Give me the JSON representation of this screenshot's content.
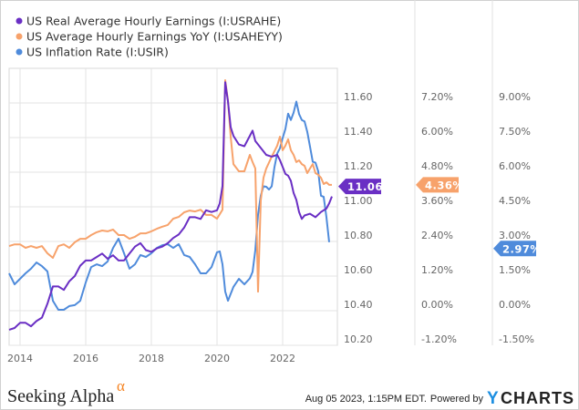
{
  "chart_data": {
    "type": "line",
    "title": "",
    "legend_position": "top-left",
    "grid": true,
    "x_ticks": [
      "2014",
      "2016",
      "2018",
      "2020",
      "2022"
    ],
    "xlim": [
      "2013-09",
      "2023-08"
    ],
    "axes": [
      {
        "id": "usrahe",
        "ticks": [
          "11.60",
          "11.40",
          "11.20",
          "11.00",
          "10.80",
          "10.60",
          "10.40",
          "10.20"
        ],
        "ylim": [
          10.2,
          11.8
        ]
      },
      {
        "id": "usaheyy",
        "ticks": [
          "7.20%",
          "6.00%",
          "4.80%",
          "3.60%",
          "2.40%",
          "1.20%",
          "0.00%",
          "-1.20%"
        ],
        "ylim": [
          -1.2,
          8.4
        ]
      },
      {
        "id": "usir",
        "ticks": [
          "9.00%",
          "7.50%",
          "6.00%",
          "4.50%",
          "3.00%",
          "1.50%",
          "0.00%",
          "-1.50%"
        ],
        "ylim": [
          -1.5,
          10.5
        ]
      }
    ],
    "series": [
      {
        "name": "US Real Average Hourly Earnings (I:USRAHE)",
        "axis": "usrahe",
        "color": "#6a2fc4",
        "last_label": "11.06",
        "points": [
          [
            "2013-09",
            10.29
          ],
          [
            "2013-11",
            10.3
          ],
          [
            "2014-01",
            10.33
          ],
          [
            "2014-03",
            10.33
          ],
          [
            "2014-05",
            10.31
          ],
          [
            "2014-07",
            10.34
          ],
          [
            "2014-09",
            10.36
          ],
          [
            "2014-11",
            10.44
          ],
          [
            "2015-01",
            10.54
          ],
          [
            "2015-03",
            10.54
          ],
          [
            "2015-05",
            10.52
          ],
          [
            "2015-07",
            10.57
          ],
          [
            "2015-09",
            10.6
          ],
          [
            "2015-11",
            10.66
          ],
          [
            "2016-01",
            10.69
          ],
          [
            "2016-03",
            10.69
          ],
          [
            "2016-05",
            10.71
          ],
          [
            "2016-07",
            10.73
          ],
          [
            "2016-09",
            10.7
          ],
          [
            "2016-11",
            10.72
          ],
          [
            "2017-01",
            10.69
          ],
          [
            "2017-03",
            10.69
          ],
          [
            "2017-05",
            10.73
          ],
          [
            "2017-07",
            10.77
          ],
          [
            "2017-09",
            10.79
          ],
          [
            "2017-11",
            10.75
          ],
          [
            "2018-01",
            10.74
          ],
          [
            "2018-03",
            10.76
          ],
          [
            "2018-05",
            10.77
          ],
          [
            "2018-07",
            10.79
          ],
          [
            "2018-09",
            10.82
          ],
          [
            "2018-11",
            10.84
          ],
          [
            "2019-01",
            10.88
          ],
          [
            "2019-03",
            10.94
          ],
          [
            "2019-05",
            10.94
          ],
          [
            "2019-07",
            10.93
          ],
          [
            "2019-09",
            10.98
          ],
          [
            "2019-11",
            10.97
          ],
          [
            "2020-01",
            10.98
          ],
          [
            "2020-02",
            11.02
          ],
          [
            "2020-03",
            11.12
          ],
          [
            "2020-04",
            11.72
          ],
          [
            "2020-05",
            11.61
          ],
          [
            "2020-06",
            11.46
          ],
          [
            "2020-07",
            11.41
          ],
          [
            "2020-09",
            11.36
          ],
          [
            "2020-11",
            11.35
          ],
          [
            "2021-01",
            11.41
          ],
          [
            "2021-02",
            11.44
          ],
          [
            "2021-03",
            11.38
          ],
          [
            "2021-05",
            11.34
          ],
          [
            "2021-07",
            11.3
          ],
          [
            "2021-09",
            11.29
          ],
          [
            "2021-11",
            11.3
          ],
          [
            "2021-12",
            11.27
          ],
          [
            "2022-01",
            11.23
          ],
          [
            "2022-02",
            11.19
          ],
          [
            "2022-03",
            11.18
          ],
          [
            "2022-04",
            11.15
          ],
          [
            "2022-05",
            11.08
          ],
          [
            "2022-06",
            11.04
          ],
          [
            "2022-07",
            10.97
          ],
          [
            "2022-08",
            10.93
          ],
          [
            "2022-09",
            10.95
          ],
          [
            "2022-11",
            10.96
          ],
          [
            "2023-01",
            10.94
          ],
          [
            "2023-03",
            10.97
          ],
          [
            "2023-05",
            10.99
          ],
          [
            "2023-06",
            11.02
          ],
          [
            "2023-07",
            11.06
          ]
        ]
      },
      {
        "name": "US Average Hourly Earnings YoY (I:USAHEYY)",
        "axis": "usaheyy",
        "color": "#f7a26b",
        "last_label": "4.36%",
        "points": [
          [
            "2013-09",
            2.24
          ],
          [
            "2013-11",
            2.3
          ],
          [
            "2014-01",
            2.3
          ],
          [
            "2014-03",
            2.18
          ],
          [
            "2014-05",
            2.24
          ],
          [
            "2014-07",
            2.18
          ],
          [
            "2014-09",
            2.24
          ],
          [
            "2014-11",
            1.99
          ],
          [
            "2015-01",
            1.83
          ],
          [
            "2015-03",
            2.24
          ],
          [
            "2015-05",
            2.3
          ],
          [
            "2015-07",
            2.18
          ],
          [
            "2015-09",
            2.37
          ],
          [
            "2015-11",
            2.49
          ],
          [
            "2016-01",
            2.49
          ],
          [
            "2016-03",
            2.62
          ],
          [
            "2016-05",
            2.72
          ],
          [
            "2016-07",
            2.78
          ],
          [
            "2016-09",
            2.75
          ],
          [
            "2016-11",
            2.81
          ],
          [
            "2017-01",
            2.62
          ],
          [
            "2017-03",
            2.62
          ],
          [
            "2017-05",
            2.49
          ],
          [
            "2017-07",
            2.56
          ],
          [
            "2017-09",
            2.68
          ],
          [
            "2017-11",
            2.68
          ],
          [
            "2018-01",
            2.75
          ],
          [
            "2018-03",
            2.84
          ],
          [
            "2018-05",
            2.91
          ],
          [
            "2018-07",
            2.97
          ],
          [
            "2018-09",
            3.19
          ],
          [
            "2018-11",
            3.25
          ],
          [
            "2019-01",
            3.41
          ],
          [
            "2019-03",
            3.47
          ],
          [
            "2019-05",
            3.44
          ],
          [
            "2019-07",
            3.5
          ],
          [
            "2019-09",
            3.32
          ],
          [
            "2019-11",
            3.32
          ],
          [
            "2020-01",
            3.19
          ],
          [
            "2020-03",
            3.5
          ],
          [
            "2020-04",
            7.99
          ],
          [
            "2020-05",
            7.29
          ],
          [
            "2020-06",
            6.03
          ],
          [
            "2020-07",
            5.08
          ],
          [
            "2020-09",
            4.83
          ],
          [
            "2020-11",
            4.83
          ],
          [
            "2021-01",
            5.4
          ],
          [
            "2021-02",
            5.15
          ],
          [
            "2021-03",
            4.93
          ],
          [
            "2021-04",
            0.66
          ],
          [
            "2021-05",
            3.82
          ],
          [
            "2021-06",
            4.61
          ],
          [
            "2021-07",
            4.93
          ],
          [
            "2021-09",
            5.34
          ],
          [
            "2021-11",
            5.72
          ],
          [
            "2021-12",
            6.03
          ],
          [
            "2022-01",
            5.56
          ],
          [
            "2022-02",
            5.72
          ],
          [
            "2022-03",
            5.94
          ],
          [
            "2022-04",
            5.56
          ],
          [
            "2022-05",
            5.4
          ],
          [
            "2022-06",
            5.15
          ],
          [
            "2022-07",
            5.21
          ],
          [
            "2022-08",
            5.08
          ],
          [
            "2022-09",
            5.02
          ],
          [
            "2022-10",
            4.77
          ],
          [
            "2022-11",
            4.93
          ],
          [
            "2022-12",
            5.08
          ],
          [
            "2023-01",
            4.77
          ],
          [
            "2023-02",
            4.71
          ],
          [
            "2023-03",
            4.61
          ],
          [
            "2023-04",
            4.39
          ],
          [
            "2023-05",
            4.45
          ],
          [
            "2023-06",
            4.36
          ],
          [
            "2023-07",
            4.36
          ]
        ]
      },
      {
        "name": "US Inflation Rate (I:USIR)",
        "axis": "usir",
        "color": "#4f8bdb",
        "last_label": "2.97%",
        "points": [
          [
            "2013-09",
            1.62
          ],
          [
            "2013-11",
            1.14
          ],
          [
            "2014-01",
            1.38
          ],
          [
            "2014-03",
            1.62
          ],
          [
            "2014-05",
            1.82
          ],
          [
            "2014-07",
            2.09
          ],
          [
            "2014-09",
            1.93
          ],
          [
            "2014-11",
            1.7
          ],
          [
            "2015-01",
            0.43
          ],
          [
            "2015-03",
            0.04
          ],
          [
            "2015-05",
            0.04
          ],
          [
            "2015-07",
            0.2
          ],
          [
            "2015-09",
            0.24
          ],
          [
            "2015-11",
            0.43
          ],
          [
            "2016-01",
            1.22
          ],
          [
            "2016-03",
            1.89
          ],
          [
            "2016-05",
            2.01
          ],
          [
            "2016-07",
            1.93
          ],
          [
            "2016-09",
            2.13
          ],
          [
            "2016-11",
            2.72
          ],
          [
            "2017-01",
            3.12
          ],
          [
            "2017-03",
            2.49
          ],
          [
            "2017-05",
            1.82
          ],
          [
            "2017-07",
            2.01
          ],
          [
            "2017-09",
            2.41
          ],
          [
            "2017-11",
            2.33
          ],
          [
            "2018-01",
            2.49
          ],
          [
            "2018-03",
            2.72
          ],
          [
            "2018-05",
            2.84
          ],
          [
            "2018-07",
            2.88
          ],
          [
            "2018-09",
            2.72
          ],
          [
            "2018-11",
            2.88
          ],
          [
            "2019-01",
            2.41
          ],
          [
            "2019-03",
            2.33
          ],
          [
            "2019-05",
            2.01
          ],
          [
            "2019-07",
            1.62
          ],
          [
            "2019-09",
            1.62
          ],
          [
            "2019-11",
            1.89
          ],
          [
            "2020-01",
            2.53
          ],
          [
            "2020-02",
            2.57
          ],
          [
            "2020-03",
            2.01
          ],
          [
            "2020-04",
            0.83
          ],
          [
            "2020-05",
            0.43
          ],
          [
            "2020-07",
            1.03
          ],
          [
            "2020-09",
            1.38
          ],
          [
            "2020-11",
            1.14
          ],
          [
            "2021-01",
            1.4
          ],
          [
            "2021-02",
            1.68
          ],
          [
            "2021-03",
            2.62
          ],
          [
            "2021-04",
            4.16
          ],
          [
            "2021-05",
            4.99
          ],
          [
            "2021-06",
            5.39
          ],
          [
            "2021-07",
            5.37
          ],
          [
            "2021-08",
            5.25
          ],
          [
            "2021-09",
            5.39
          ],
          [
            "2021-10",
            6.22
          ],
          [
            "2021-11",
            6.81
          ],
          [
            "2021-12",
            7.04
          ],
          [
            "2022-01",
            7.48
          ],
          [
            "2022-02",
            7.87
          ],
          [
            "2022-03",
            8.54
          ],
          [
            "2022-04",
            8.26
          ],
          [
            "2022-05",
            8.58
          ],
          [
            "2022-06",
            9.06
          ],
          [
            "2022-07",
            8.52
          ],
          [
            "2022-08",
            8.26
          ],
          [
            "2022-09",
            8.2
          ],
          [
            "2022-10",
            7.75
          ],
          [
            "2022-11",
            7.11
          ],
          [
            "2022-12",
            6.45
          ],
          [
            "2023-01",
            6.41
          ],
          [
            "2023-02",
            6.04
          ],
          [
            "2023-03",
            4.98
          ],
          [
            "2023-04",
            4.93
          ],
          [
            "2023-05",
            4.05
          ],
          [
            "2023-06",
            2.97
          ]
        ]
      }
    ]
  },
  "footer": {
    "brand": "Seeking Alpha",
    "brand_mark": "α",
    "timestamp": "Aug 05 2023, 1:15PM EDT.",
    "powered_by": "Powered by",
    "ycharts_y": "Y",
    "ycharts_rest": "CHARTS"
  },
  "colors": {
    "grid": "#e3e3e3",
    "ycharts_blue": "#1d8fe1",
    "alpha_orange": "#f58220"
  }
}
